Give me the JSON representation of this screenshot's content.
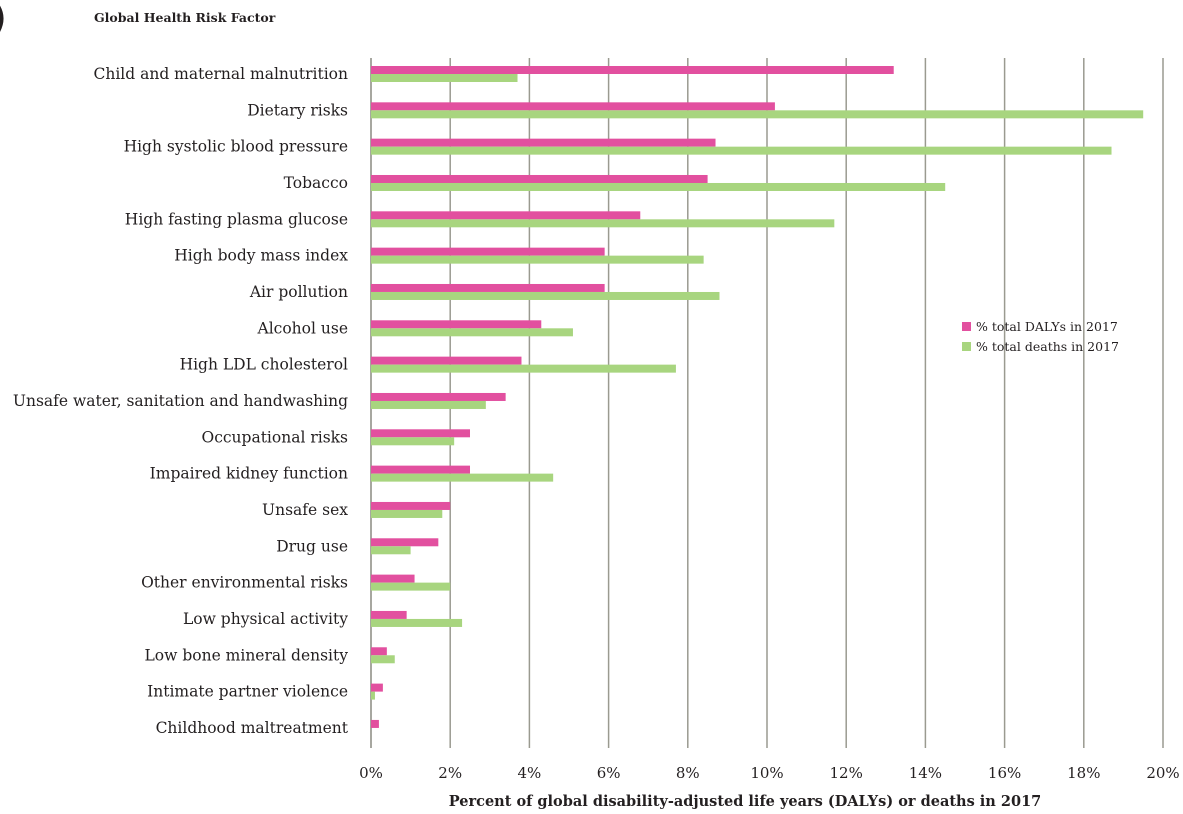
{
  "chart_data": {
    "type": "bar",
    "orientation": "horizontal",
    "title": "Global Health Risk Factor",
    "xlabel": "Percent of global disability-adjusted life years (DALYs) or deaths in 2017",
    "ylabel": "",
    "xlim": [
      0,
      20
    ],
    "xticks": [
      0,
      2,
      4,
      6,
      8,
      10,
      12,
      14,
      16,
      18,
      20
    ],
    "xtick_labels": [
      "0%",
      "2%",
      "4%",
      "6%",
      "8%",
      "10%",
      "12%",
      "14%",
      "16%",
      "18%",
      "20%"
    ],
    "grid": "vertical",
    "legend_position": "right-middle",
    "categories": [
      "Child and maternal malnutrition",
      "Dietary risks",
      "High systolic blood pressure",
      "Tobacco",
      "High fasting plasma glucose",
      "High body mass index",
      "Air pollution",
      "Alcohol use",
      "High LDL cholesterol",
      "Unsafe water, sanitation and handwashing",
      "Occupational risks",
      "Impaired kidney function",
      "Unsafe sex",
      "Drug use",
      "Other environmental risks",
      "Low physical activity",
      "Low bone mineral density",
      "Intimate partner violence",
      "Childhood maltreatment"
    ],
    "series": [
      {
        "name": "% total DALYs in 2017",
        "color": "#e2509f",
        "values": [
          13.2,
          10.2,
          8.7,
          8.5,
          6.8,
          5.9,
          5.9,
          4.3,
          3.8,
          3.4,
          2.5,
          2.5,
          2.0,
          1.7,
          1.1,
          0.9,
          0.4,
          0.3,
          0.2
        ]
      },
      {
        "name": "% total deaths in 2017",
        "color": "#a8d57f",
        "values": [
          3.7,
          19.5,
          18.7,
          14.5,
          11.7,
          8.4,
          8.8,
          5.1,
          7.7,
          2.9,
          2.1,
          4.6,
          1.8,
          1.0,
          2.0,
          2.3,
          0.6,
          0.1,
          0.0
        ]
      }
    ]
  }
}
